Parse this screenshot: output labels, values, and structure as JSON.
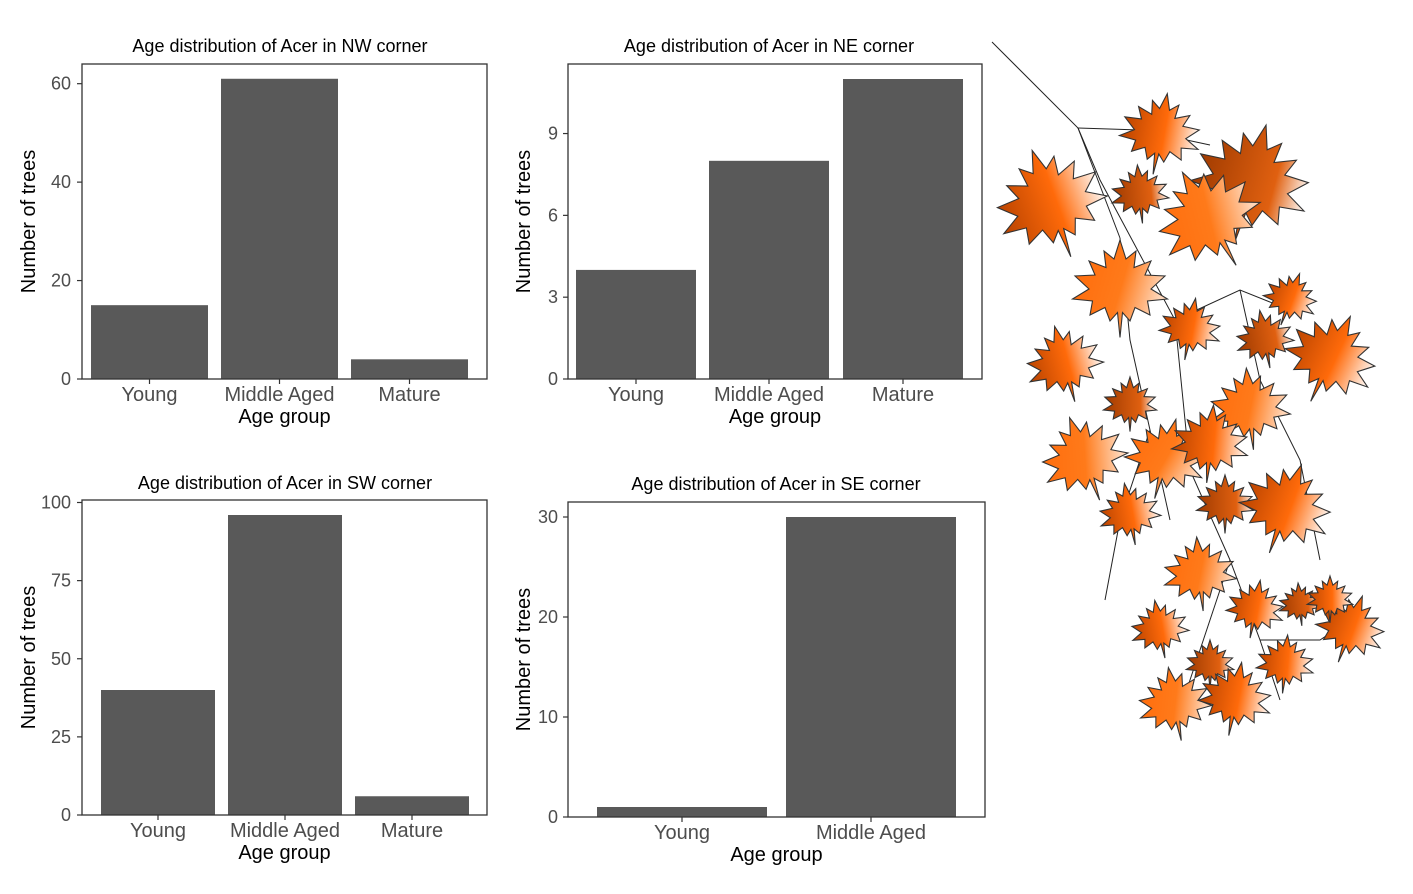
{
  "colors": {
    "bar": "#595959",
    "panel_border": "#333333",
    "tick_text": "#4d4d4d",
    "leaf_dark": "#b84300",
    "leaf_mid": "#ff6a0a",
    "leaf_light": "#ffffff"
  },
  "decoration": {
    "name": "maple-leaf-branch-illustration"
  },
  "chart_data": [
    {
      "type": "bar",
      "title": "Age distribution of Acer in NW corner",
      "xlabel": "Age group",
      "ylabel": "Number of trees",
      "categories": [
        "Young",
        "Middle Aged",
        "Mature"
      ],
      "values": [
        15,
        61,
        4
      ],
      "ylim": [
        0,
        64
      ],
      "yticks": [
        0,
        20,
        40,
        60
      ],
      "grid": false
    },
    {
      "type": "bar",
      "title": "Age distribution of Acer in NE corner",
      "xlabel": "Age group",
      "ylabel": "Number of trees",
      "categories": [
        "Young",
        "Middle Aged",
        "Mature"
      ],
      "values": [
        4,
        8,
        11
      ],
      "ylim": [
        0,
        11.55
      ],
      "yticks": [
        0,
        3,
        6,
        9
      ],
      "grid": false
    },
    {
      "type": "bar",
      "title": "Age distribution of Acer in SW corner",
      "xlabel": "Age group",
      "ylabel": "Number of trees",
      "categories": [
        "Young",
        "Middle Aged",
        "Mature"
      ],
      "values": [
        40,
        96,
        6
      ],
      "ylim": [
        0,
        100.8
      ],
      "yticks": [
        0,
        25,
        50,
        75,
        100
      ],
      "grid": false
    },
    {
      "type": "bar",
      "title": "Age distribution of Acer in SE corner",
      "xlabel": "Age group",
      "ylabel": "Number of trees",
      "categories": [
        "Young",
        "Middle Aged"
      ],
      "values": [
        1,
        30
      ],
      "ylim": [
        0,
        31.5
      ],
      "yticks": [
        0,
        10,
        20,
        30
      ],
      "grid": false
    }
  ]
}
